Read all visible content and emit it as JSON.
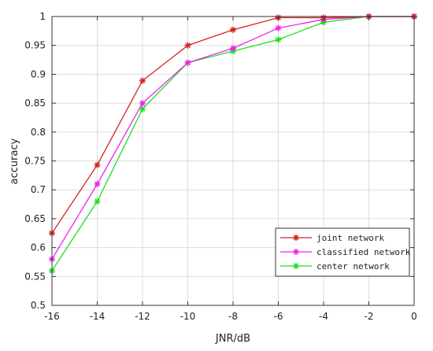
{
  "chart_data": {
    "type": "line",
    "xlabel": "JNR/dB",
    "ylabel": "accuracy",
    "x": [
      -16,
      -14,
      -12,
      -10,
      -8,
      -6,
      -4,
      -2,
      0
    ],
    "xlim": [
      -16,
      0
    ],
    "ylim": [
      0.5,
      1.0
    ],
    "x_ticks": [
      -16,
      -14,
      -12,
      -10,
      -8,
      -6,
      -4,
      -2,
      0
    ],
    "x_tick_labels": [
      "-16",
      "-14",
      "-12",
      "-10",
      "-8",
      "-6",
      "-4",
      "-2",
      "0"
    ],
    "y_ticks": [
      0.5,
      0.55,
      0.6,
      0.65,
      0.7,
      0.75,
      0.8,
      0.85,
      0.9,
      0.95,
      1.0
    ],
    "y_tick_labels": [
      "0.5",
      "0.55",
      "0.6",
      "0.65",
      "0.7",
      "0.75",
      "0.8",
      "0.85",
      "0.9",
      "0.95",
      "1"
    ],
    "grid": true,
    "legend_position": "bottom-right",
    "marker": "asterisk",
    "series": [
      {
        "name": "joint network",
        "color": "#d62222",
        "values": [
          0.625,
          0.743,
          0.889,
          0.95,
          0.977,
          0.998,
          0.998,
          1.0,
          1.0
        ]
      },
      {
        "name": "classified network",
        "color": "#ee22ee",
        "values": [
          0.58,
          0.71,
          0.85,
          0.92,
          0.945,
          0.98,
          0.995,
          1.0,
          1.0
        ]
      },
      {
        "name": "center network",
        "color": "#22dd22",
        "values": [
          0.56,
          0.68,
          0.84,
          0.92,
          0.94,
          0.96,
          0.99,
          1.0,
          1.0
        ]
      }
    ]
  }
}
